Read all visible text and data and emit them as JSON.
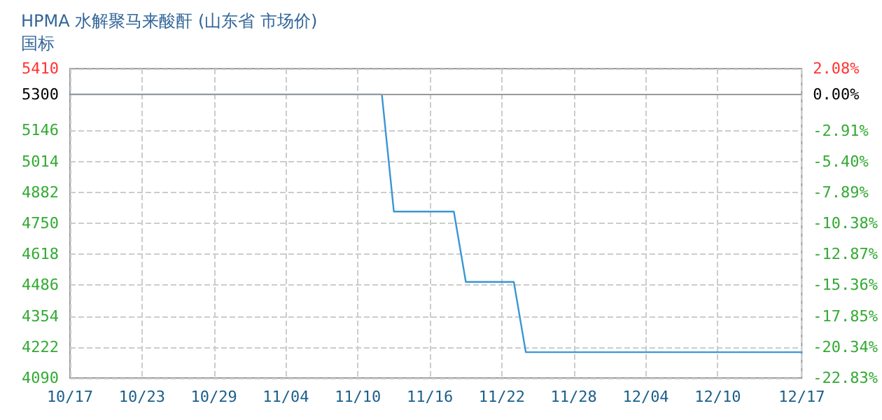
{
  "chart_data": {
    "type": "line",
    "title": "HPMA 水解聚马来酸酐 (山东省 市场价)",
    "subtitle": "国标",
    "x": [
      "--10-17",
      "--11-12",
      "--11-13",
      "--11-18",
      "--11-19",
      "--11-23",
      "--11-24",
      "--12-17"
    ],
    "series": [
      {
        "color": "#3a96d4",
        "values": [
          5300,
          5300,
          4800,
          4800,
          4500,
          4500,
          4200,
          4200
        ]
      }
    ],
    "xlim": [
      "--10-17",
      "--12-17"
    ],
    "xticks": [
      {
        "value": "--10-17",
        "label": "10/17"
      },
      {
        "value": "--10-23",
        "label": "10/23"
      },
      {
        "value": "--10-29",
        "label": "10/29"
      },
      {
        "value": "--11-04",
        "label": "11/04"
      },
      {
        "value": "--11-10",
        "label": "11/10"
      },
      {
        "value": "--11-16",
        "label": "11/16"
      },
      {
        "value": "--11-22",
        "label": "11/22"
      },
      {
        "value": "--11-28",
        "label": "11/28"
      },
      {
        "value": "--12-04",
        "label": "12/04"
      },
      {
        "value": "--12-10",
        "label": "12/10"
      },
      {
        "value": "--12-17",
        "label": "12/17"
      }
    ],
    "ylim": [
      4090,
      5410
    ],
    "yticks": [
      4090,
      4222,
      4354,
      4486,
      4618,
      4750,
      4882,
      5014,
      5146,
      5300,
      5410
    ],
    "y2lim": [
      -22.83,
      2.08
    ],
    "y2ticks": [
      {
        "value": -22.83,
        "label": "-22.83%"
      },
      {
        "value": -20.34,
        "label": "-20.34%"
      },
      {
        "value": -17.85,
        "label": "-17.85%"
      },
      {
        "value": -15.36,
        "label": "-15.36%"
      },
      {
        "value": -12.87,
        "label": "-12.87%"
      },
      {
        "value": -10.38,
        "label": "-10.38%"
      },
      {
        "value": -7.89,
        "label": "-7.89%"
      },
      {
        "value": -5.4,
        "label": "-5.40%"
      },
      {
        "value": -2.91,
        "label": "-2.91%"
      },
      {
        "value": 0,
        "label": "0.00%"
      },
      {
        "value": 2.08,
        "label": "2.08%"
      }
    ],
    "ref_lines": [
      {
        "axis": "y2",
        "value": 0,
        "color": "#999999"
      }
    ],
    "grid": true,
    "marker": "none",
    "line_style": "solid"
  }
}
